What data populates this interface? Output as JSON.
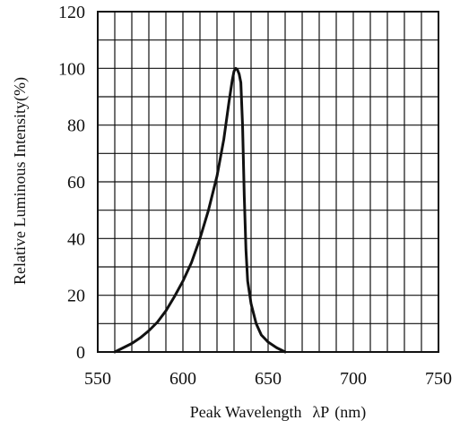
{
  "chart_data": {
    "type": "line",
    "xlabel": "Peak Wavelength",
    "xlabel_symbol": "λP",
    "xlabel_unit": "(nm)",
    "ylabel": "Relative Luminous Intensity(%)",
    "xlim": [
      550,
      750
    ],
    "ylim": [
      0,
      120
    ],
    "x_ticks": [
      550,
      600,
      650,
      700,
      750
    ],
    "y_ticks": [
      0,
      20,
      40,
      60,
      80,
      100,
      120
    ],
    "x_minor_step": 10,
    "y_minor_step": 10,
    "grid": true,
    "series": [
      {
        "x": [
          560,
          565,
          570,
          575,
          580,
          585,
          590,
          595,
          600,
          605,
          610,
          615,
          620,
          624,
          627,
          629,
          630,
          631,
          632,
          633,
          634,
          635,
          636,
          637,
          638,
          640,
          643,
          646,
          650,
          655,
          660
        ],
        "y": [
          0,
          1.5,
          3,
          5,
          7.5,
          10.5,
          14.5,
          19.5,
          25,
          31.5,
          40,
          50,
          62,
          75,
          88,
          96,
          99,
          100,
          99.5,
          98,
          95,
          80,
          55,
          36,
          25,
          17,
          10,
          6,
          3.5,
          1.5,
          0
        ]
      }
    ]
  }
}
